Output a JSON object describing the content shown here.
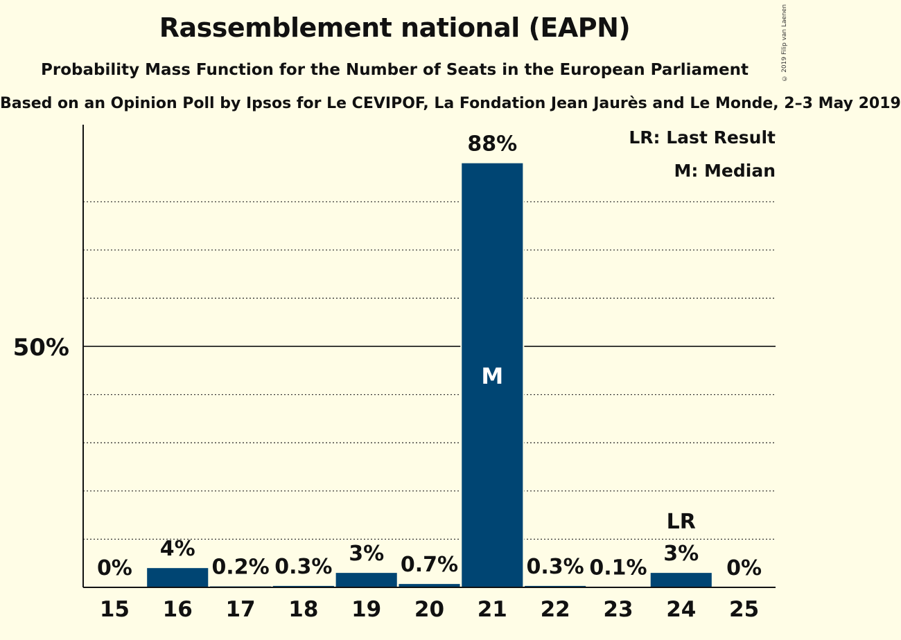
{
  "header": {
    "title": "Rassemblement national (EAPN)",
    "subtitle": "Probability Mass Function for the Number of Seats in the European Parliament",
    "subsubtitle": "Based on an Opinion Poll by Ipsos for Le CEVIPOF, La Fondation Jean Jaurès and Le Monde, 2–3 May 2019",
    "copyright": "© 2019 Filip van Laenen"
  },
  "legend": {
    "last_result": "LR: Last Result",
    "median": "M: Median"
  },
  "colors": {
    "bar": "#004573",
    "background": "#fffde6",
    "text": "#111111"
  },
  "chart_data": {
    "type": "bar",
    "categories": [
      "15",
      "16",
      "17",
      "18",
      "19",
      "20",
      "21",
      "22",
      "23",
      "24",
      "25"
    ],
    "values": [
      0,
      4,
      0.2,
      0.3,
      3,
      0.7,
      88,
      0.3,
      0.1,
      3,
      0
    ],
    "value_labels": [
      "0%",
      "4%",
      "0.2%",
      "0.3%",
      "3%",
      "0.7%",
      "88%",
      "0.3%",
      "0.1%",
      "3%",
      "0%"
    ],
    "ylim": [
      0,
      96
    ],
    "ytick_labels": [
      {
        "value": 50,
        "label": "50%"
      }
    ],
    "minor_gridlines": [
      10,
      20,
      30,
      40,
      60,
      70,
      80
    ],
    "median_category": "21",
    "median_marker": "M",
    "last_result_category": "24",
    "last_result_marker": "LR",
    "grid": true,
    "legend_position": "top-right"
  }
}
